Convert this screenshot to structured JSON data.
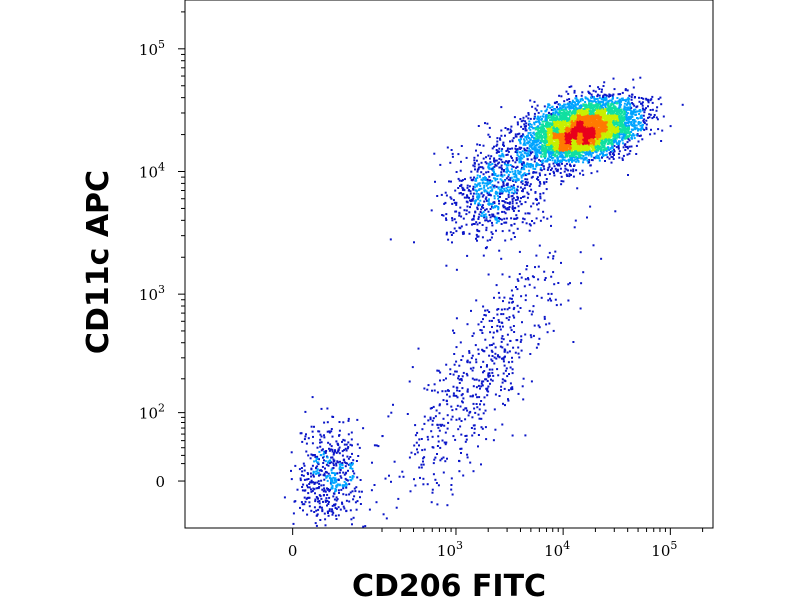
{
  "chart_data": {
    "type": "scatter",
    "title": "",
    "xlabel": "CD206 FITC",
    "ylabel": "CD11c APC",
    "x_scale": "biexponential",
    "y_scale": "biexponential",
    "x_ticks": [
      {
        "value": 0,
        "base": "0",
        "exp": ""
      },
      {
        "value": 1000,
        "base": "10",
        "exp": "3"
      },
      {
        "value": 10000,
        "base": "10",
        "exp": "4"
      },
      {
        "value": 100000,
        "base": "10",
        "exp": "5"
      }
    ],
    "y_ticks": [
      {
        "value": 0,
        "base": "0",
        "exp": ""
      },
      {
        "value": 100,
        "base": "10",
        "exp": "2"
      },
      {
        "value": 1000,
        "base": "10",
        "exp": "3"
      },
      {
        "value": 10000,
        "base": "10",
        "exp": "4"
      },
      {
        "value": 100000,
        "base": "10",
        "exp": "5"
      }
    ],
    "xlim": [
      -300,
      250000
    ],
    "ylim": [
      -60,
      250000
    ],
    "density_colormap": [
      "#0b16c8",
      "#00a4ff",
      "#10e0a0",
      "#c8f000",
      "#ff7a00",
      "#e8001c"
    ],
    "populations": [
      {
        "center_x": 15000,
        "center_y": 22000,
        "spread": "high density",
        "note_visible": false
      },
      {
        "center_x": 2500,
        "center_y": 8000,
        "spread": "upper-left shoulder",
        "note_visible": false
      },
      {
        "center_x": 1500,
        "center_y": 200,
        "spread": "diagonal streak",
        "note_visible": false
      },
      {
        "center_x": 50,
        "center_y": 5,
        "spread": "low cluster near origin",
        "note_visible": false
      }
    ]
  }
}
